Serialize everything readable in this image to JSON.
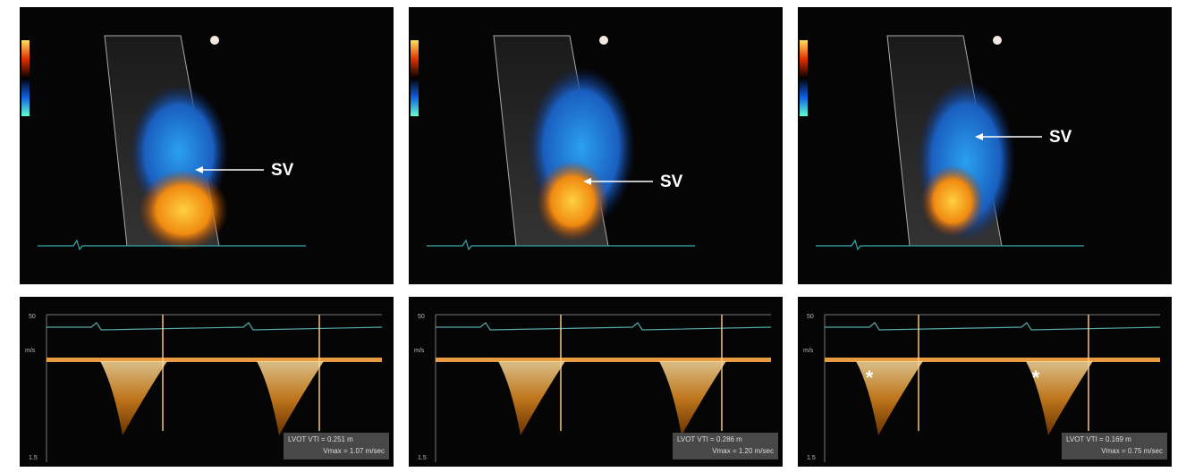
{
  "panels": [
    {
      "top": {
        "label": "SV"
      },
      "bottom": {
        "scale_top": "50",
        "unit": "m/s",
        "scale_bottom": "1.5",
        "vti": "LVOT VTI = 0.251 m",
        "vmax": "Vmax = 1.07 m/sec"
      }
    },
    {
      "top": {
        "label": "SV"
      },
      "bottom": {
        "scale_top": "50",
        "unit": "m/s",
        "scale_bottom": "1.5",
        "vti": "LVOT VTI = 0.286 m",
        "vmax": "Vmax = 1.20 m/sec"
      }
    },
    {
      "top": {
        "label": "SV"
      },
      "bottom": {
        "scale_top": "50",
        "unit": "m/s",
        "scale_bottom": "1.5",
        "vti": "LVOT VTI = 0.169 m",
        "vmax": "Vmax = 0.75 m/sec"
      },
      "markers": [
        "*",
        "*"
      ]
    }
  ]
}
